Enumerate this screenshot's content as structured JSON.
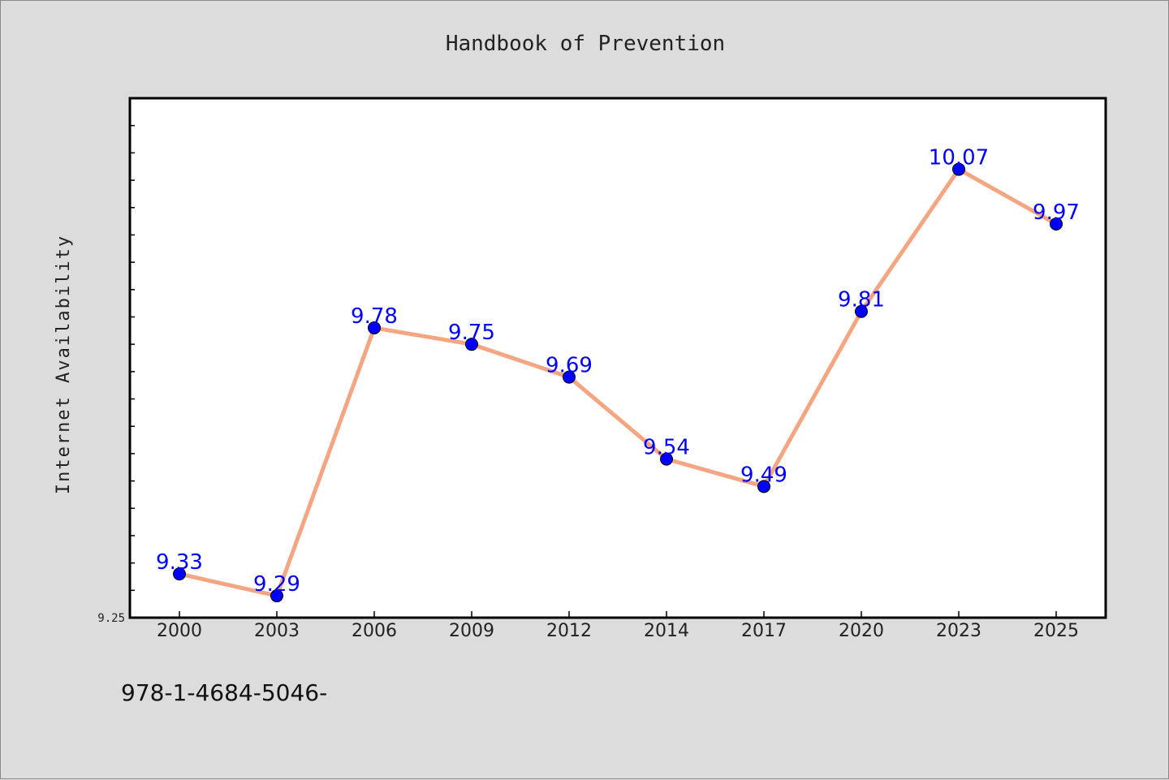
{
  "chart_data": {
    "type": "line",
    "title": "Handbook of Prevention",
    "xlabel": "",
    "ylabel": "Internet Availability",
    "categories": [
      "2000",
      "2003",
      "2006",
      "2009",
      "2012",
      "2014",
      "2017",
      "2020",
      "2023",
      "2025"
    ],
    "values": [
      9.33,
      9.29,
      9.78,
      9.75,
      9.69,
      9.54,
      9.49,
      9.81,
      10.07,
      9.97
    ],
    "data_labels": [
      "9.33",
      "9.29",
      "9.78",
      "9.75",
      "9.69",
      "9.54",
      "9.49",
      "9.81",
      "10.07",
      "9.97"
    ],
    "ytick_labels": [
      "9.25"
    ],
    "ylim": [
      9.25,
      10.2
    ],
    "grid": false,
    "legend": "none",
    "colors": {
      "line": "#f4a582",
      "marker": "#0000ff",
      "label": "#0000ff",
      "background": "#dcdcdc",
      "plot": "#ffffff"
    }
  },
  "footer": {
    "text": "978-1-4684-5046-"
  }
}
